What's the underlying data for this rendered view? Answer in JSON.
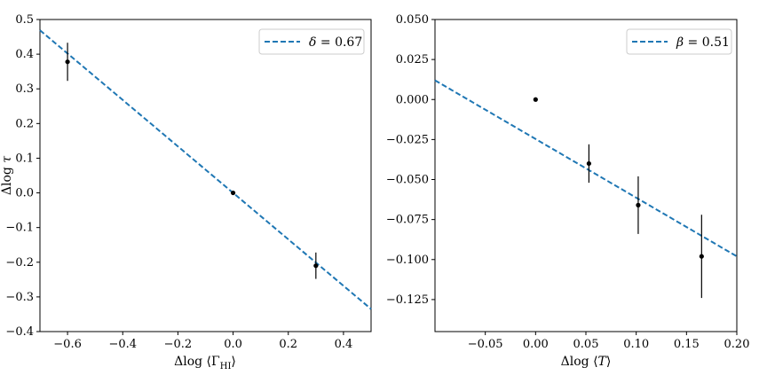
{
  "chart_data": [
    {
      "type": "scatter",
      "xlabel": "Δlog⟨Γ_HI⟩",
      "ylabel": "Δlog τ",
      "xlim": [
        -0.7,
        0.5
      ],
      "ylim": [
        -0.4,
        0.5
      ],
      "xticks": [
        "−0.6",
        "−0.4",
        "−0.2",
        "0.0",
        "0.2",
        "0.4"
      ],
      "xtick_values": [
        -0.6,
        -0.4,
        -0.2,
        0.0,
        0.2,
        0.4
      ],
      "yticks": [
        "−0.4",
        "−0.3",
        "−0.2",
        "−0.1",
        "0.0",
        "0.1",
        "0.2",
        "0.3",
        "0.4",
        "0.5"
      ],
      "ytick_values": [
        -0.4,
        -0.3,
        -0.2,
        -0.1,
        0.0,
        0.1,
        0.2,
        0.3,
        0.4,
        0.5
      ],
      "points": [
        {
          "x": -0.6,
          "y": 0.378,
          "yerr": 0.055
        },
        {
          "x": 0.0,
          "y": 0.0,
          "yerr": 0
        },
        {
          "x": 0.3,
          "y": -0.21,
          "yerr": 0.038
        }
      ],
      "fit_line": {
        "label": "δ = 0.67",
        "symbol": "δ",
        "value": "0.67",
        "slope": -0.67,
        "intercept": 0.0
      },
      "legend": {
        "loc": "upper-right"
      },
      "line_color": "#1f77b4",
      "grid": false
    },
    {
      "type": "scatter",
      "xlabel": "Δlog⟨T⟩",
      "ylabel": "",
      "xlim": [
        -0.1,
        0.2
      ],
      "ylim": [
        -0.145,
        0.05
      ],
      "xticks": [
        "−0.05",
        "0.00",
        "0.05",
        "0.10",
        "0.15",
        "0.20"
      ],
      "xtick_values": [
        -0.05,
        0.0,
        0.05,
        0.1,
        0.15,
        0.2
      ],
      "yticks": [
        "−0.125",
        "−0.100",
        "−0.075",
        "−0.050",
        "−0.025",
        "0.000",
        "0.025",
        "0.050"
      ],
      "ytick_values": [
        -0.125,
        -0.1,
        -0.075,
        -0.05,
        -0.025,
        0.0,
        0.025,
        0.05
      ],
      "points": [
        {
          "x": 0.0,
          "y": 0.0,
          "yerr": 0
        },
        {
          "x": 0.053,
          "y": -0.04,
          "yerr": 0.012
        },
        {
          "x": 0.102,
          "y": -0.066,
          "yerr": 0.018
        },
        {
          "x": 0.165,
          "y": -0.098,
          "yerr": 0.026
        }
      ],
      "fit_line": {
        "label": "β = 0.51",
        "symbol": "β",
        "value": "0.51",
        "x": [
          -0.1,
          0.2
        ],
        "y": [
          0.012,
          -0.098
        ]
      },
      "legend": {
        "loc": "upper-right"
      },
      "line_color": "#1f77b4",
      "grid": false
    }
  ]
}
